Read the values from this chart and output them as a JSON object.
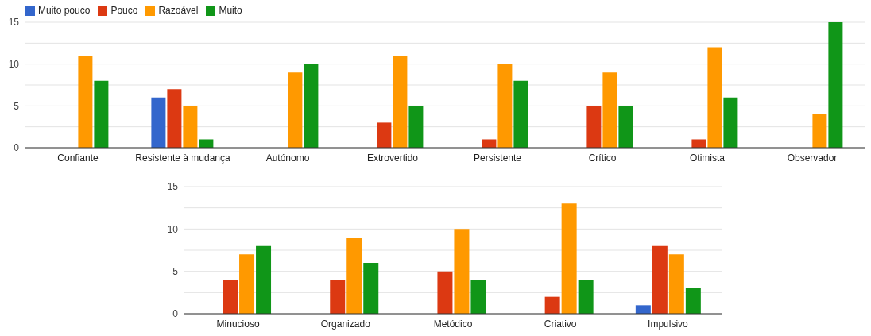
{
  "chart_data": [
    {
      "type": "bar",
      "categories": [
        "Confiante",
        "Resistente à mudança",
        "Autónomo",
        "Extrovertido",
        "Persistente",
        "Crítico",
        "Otimista",
        "Observador"
      ],
      "series": [
        {
          "name": "Muito pouco",
          "color": "#3366cc",
          "values": [
            0,
            6,
            0,
            0,
            0,
            0,
            0,
            0
          ]
        },
        {
          "name": "Pouco",
          "color": "#dc3912",
          "values": [
            0,
            7,
            0,
            3,
            1,
            5,
            1,
            0
          ]
        },
        {
          "name": "Razoável",
          "color": "#ff9900",
          "values": [
            11,
            5,
            9,
            11,
            10,
            9,
            12,
            4
          ]
        },
        {
          "name": "Muito",
          "color": "#109618",
          "values": [
            8,
            1,
            10,
            5,
            8,
            5,
            6,
            15
          ]
        }
      ],
      "ylim": [
        0,
        15
      ],
      "yticks": [
        0,
        {
          "value": 2.5,
          "label": null
        },
        5,
        {
          "value": 7.5,
          "label": null
        },
        10,
        {
          "value": 12.5,
          "label": null
        },
        15
      ],
      "grid": "y",
      "legend": "top left"
    },
    {
      "type": "bar",
      "categories": [
        "Minucioso",
        "Organizado",
        "Metódico",
        "Criativo",
        "Impulsivo"
      ],
      "series": [
        {
          "color": "#3366cc",
          "values": [
            0,
            0,
            0,
            0,
            1
          ]
        },
        {
          "color": "#dc3912",
          "values": [
            4,
            4,
            5,
            2,
            8
          ]
        },
        {
          "color": "#ff9900",
          "values": [
            7,
            9,
            10,
            13,
            7
          ]
        },
        {
          "color": "#109618",
          "values": [
            8,
            6,
            4,
            4,
            3
          ]
        }
      ],
      "ylim": [
        0,
        15
      ],
      "yticks": [
        0,
        {
          "value": 2.5,
          "label": null
        },
        5,
        {
          "value": 7.5,
          "label": null
        },
        10,
        {
          "value": 12.5,
          "label": null
        },
        15
      ],
      "grid": "y"
    }
  ]
}
